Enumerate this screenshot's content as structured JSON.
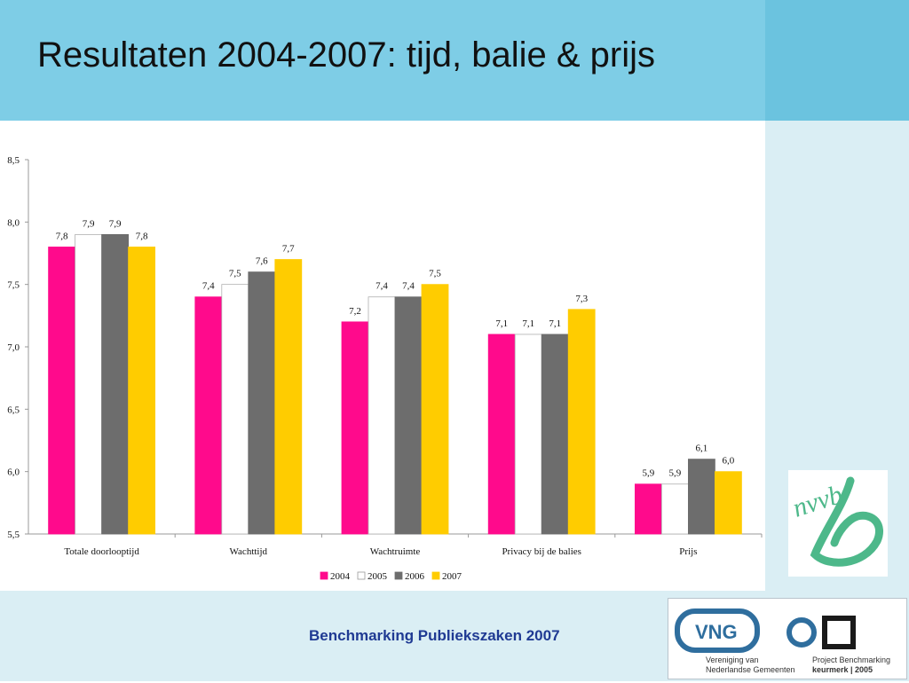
{
  "slide": {
    "title": "Resultaten 2004-2007: tijd, balie & prijs",
    "footer": "Benchmarking Publiekszaken 2007"
  },
  "logos": {
    "nvvb": "nvvb",
    "vng": {
      "mark": "VNG",
      "line1": "Vereniging van",
      "line2": "Nederlandse Gemeenten",
      "project1": "Project Benchmarking",
      "project2": "keurmerk | 2005"
    }
  },
  "colors": {
    "header": "#7ecde6",
    "panel": "#daeef4",
    "footer_text": "#1f3a93",
    "logo_green": "#4db88a",
    "vng_blue": "#2f6e9e"
  },
  "chart_data": {
    "type": "bar",
    "categories": [
      "Totale doorlooptijd",
      "Wachttijd",
      "Wachtruimte",
      "Privacy bij de balies",
      "Prijs"
    ],
    "series": [
      {
        "name": "2004",
        "color": "#ff0a8c",
        "values": [
          7.8,
          7.4,
          7.2,
          7.1,
          5.9
        ],
        "labels": [
          "7,8",
          "7,4",
          "7,2",
          "7,1",
          "5,9"
        ]
      },
      {
        "name": "2005",
        "color": "#ffffff",
        "values": [
          7.9,
          7.5,
          7.4,
          7.1,
          5.9
        ],
        "labels": [
          "7,9",
          "7,5",
          "7,4",
          "7,1",
          "5,9"
        ]
      },
      {
        "name": "2006",
        "color": "#6d6d6d",
        "values": [
          7.9,
          7.6,
          7.4,
          7.1,
          6.1
        ],
        "labels": [
          "7,9",
          "7,6",
          "7,4",
          "7,1",
          "6,1"
        ]
      },
      {
        "name": "2007",
        "color": "#ffcc00",
        "values": [
          7.8,
          7.7,
          7.5,
          7.3,
          6.0
        ],
        "labels": [
          "7,8",
          "7,7",
          "7,5",
          "7,3",
          "6,0"
        ]
      }
    ],
    "ylim": [
      5.5,
      8.5
    ],
    "yticks": [
      "5,5",
      "6,0",
      "6,5",
      "7,0",
      "7,5",
      "8,0",
      "8,5"
    ],
    "ytick_values": [
      5.5,
      6.0,
      6.5,
      7.0,
      7.5,
      8.0,
      8.5
    ],
    "legend_position": "bottom",
    "grid": false
  }
}
